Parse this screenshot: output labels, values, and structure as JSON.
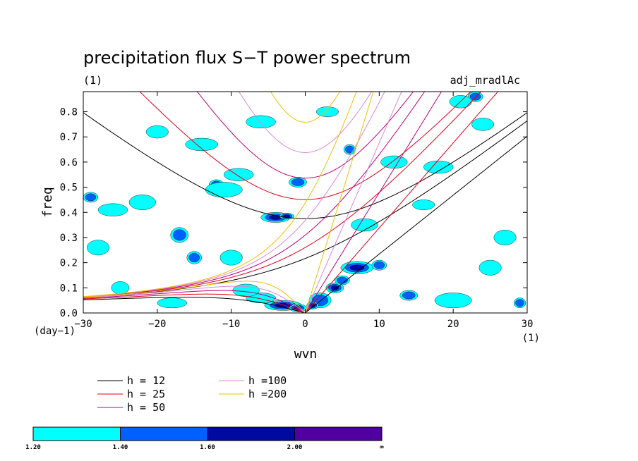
{
  "chart_data": {
    "type": "heatmap",
    "title": "precipitation flux S−T power spectrum",
    "subtitle_left": "(1)",
    "subtitle_right": "adj_mradlAc",
    "xlabel": "wvn",
    "ylabel": "freq",
    "x_unit": "(1)",
    "y_unit": "(day−1)",
    "xlim": [
      -30,
      30
    ],
    "ylim": [
      0,
      0.88
    ],
    "x_ticks": [
      {
        "value": -30,
        "label": "−30"
      },
      {
        "value": -20,
        "label": "−20"
      },
      {
        "value": -10,
        "label": "−10"
      },
      {
        "value": 0,
        "label": "0"
      },
      {
        "value": 10,
        "label": "10"
      },
      {
        "value": 20,
        "label": "20"
      },
      {
        "value": 30,
        "label": "30"
      }
    ],
    "y_ticks": [
      {
        "value": 0.0,
        "label": "0.0"
      },
      {
        "value": 0.1,
        "label": "0.1"
      },
      {
        "value": 0.2,
        "label": "0.2"
      },
      {
        "value": 0.3,
        "label": "0.3"
      },
      {
        "value": 0.4,
        "label": "0.4"
      },
      {
        "value": 0.5,
        "label": "0.5"
      },
      {
        "value": 0.6,
        "label": "0.6"
      },
      {
        "value": 0.7,
        "label": "0.7"
      },
      {
        "value": 0.8,
        "label": "0.8"
      }
    ],
    "grid": false,
    "legend_placement": "bottom-left",
    "dispersion_curves": [
      {
        "name": "h = 12",
        "h": 12,
        "color": "#000000"
      },
      {
        "name": "h = 25",
        "h": 25,
        "color": "#e0001a"
      },
      {
        "name": "h = 50",
        "h": 50,
        "color": "#c0007a"
      },
      {
        "name": "h =100",
        "h": 100,
        "color": "#d88ad8"
      },
      {
        "name": "h =200",
        "h": 200,
        "color": "#f0c000"
      }
    ],
    "colorbar": {
      "levels": [
        "1.20",
        "1.40",
        "1.60",
        "2.00",
        "∞"
      ],
      "colors": [
        "#00ffff",
        "#0060ff",
        "#000aa0",
        "#5000a0"
      ]
    },
    "power_blobs": [
      {
        "x": -4,
        "y": 0.38,
        "rx": 2.0,
        "ry": 0.02,
        "level": 3
      },
      {
        "x": -2.5,
        "y": 0.385,
        "rx": 1.0,
        "ry": 0.012,
        "level": 4
      },
      {
        "x": 7,
        "y": 0.18,
        "rx": 2.2,
        "ry": 0.025,
        "level": 3
      },
      {
        "x": 5,
        "y": 0.13,
        "rx": 1.0,
        "ry": 0.018,
        "level": 2
      },
      {
        "x": 4,
        "y": 0.1,
        "rx": 1.2,
        "ry": 0.02,
        "level": 3
      },
      {
        "x": 2,
        "y": 0.05,
        "rx": 1.5,
        "ry": 0.03,
        "level": 2
      },
      {
        "x": 1,
        "y": 0.03,
        "rx": 0.8,
        "ry": 0.015,
        "level": 3
      },
      {
        "x": -3,
        "y": 0.03,
        "rx": 2.5,
        "ry": 0.02,
        "level": 3
      },
      {
        "x": -1,
        "y": 0.02,
        "rx": 1.2,
        "ry": 0.015,
        "level": 4
      },
      {
        "x": -6,
        "y": 0.06,
        "rx": 2.0,
        "ry": 0.02,
        "level": 1
      },
      {
        "x": -8,
        "y": 0.09,
        "rx": 1.8,
        "ry": 0.025,
        "level": 1
      },
      {
        "x": -29,
        "y": 0.46,
        "rx": 1.0,
        "ry": 0.02,
        "level": 2
      },
      {
        "x": -17,
        "y": 0.31,
        "rx": 1.2,
        "ry": 0.03,
        "level": 2
      },
      {
        "x": -15,
        "y": 0.22,
        "rx": 1.0,
        "ry": 0.025,
        "level": 2
      },
      {
        "x": -10,
        "y": 0.22,
        "rx": 1.5,
        "ry": 0.03,
        "level": 1
      },
      {
        "x": -12,
        "y": 0.51,
        "rx": 1.0,
        "ry": 0.02,
        "level": 2
      },
      {
        "x": -11,
        "y": 0.49,
        "rx": 2.5,
        "ry": 0.03,
        "level": 1
      },
      {
        "x": -1,
        "y": 0.52,
        "rx": 1.2,
        "ry": 0.02,
        "level": 2
      },
      {
        "x": 6,
        "y": 0.65,
        "rx": 0.8,
        "ry": 0.02,
        "level": 2
      },
      {
        "x": 14,
        "y": 0.07,
        "rx": 1.2,
        "ry": 0.02,
        "level": 2
      },
      {
        "x": 10,
        "y": 0.19,
        "rx": 1.0,
        "ry": 0.02,
        "level": 2
      },
      {
        "x": 23,
        "y": 0.86,
        "rx": 1.0,
        "ry": 0.02,
        "level": 2
      },
      {
        "x": 21,
        "y": 0.84,
        "rx": 1.5,
        "ry": 0.025,
        "level": 1
      },
      {
        "x": 29,
        "y": 0.04,
        "rx": 0.8,
        "ry": 0.02,
        "level": 2
      },
      {
        "x": -25,
        "y": 0.1,
        "rx": 1.2,
        "ry": 0.025,
        "level": 1
      },
      {
        "x": -26,
        "y": 0.41,
        "rx": 2.0,
        "ry": 0.025,
        "level": 1
      },
      {
        "x": -22,
        "y": 0.44,
        "rx": 1.8,
        "ry": 0.03,
        "level": 1
      },
      {
        "x": -14,
        "y": 0.67,
        "rx": 2.2,
        "ry": 0.025,
        "level": 1
      },
      {
        "x": -9,
        "y": 0.55,
        "rx": 2.0,
        "ry": 0.025,
        "level": 1
      },
      {
        "x": 12,
        "y": 0.6,
        "rx": 1.8,
        "ry": 0.025,
        "level": 1
      },
      {
        "x": 18,
        "y": 0.58,
        "rx": 2.0,
        "ry": 0.025,
        "level": 1
      },
      {
        "x": 16,
        "y": 0.43,
        "rx": 1.5,
        "ry": 0.02,
        "level": 1
      },
      {
        "x": 20,
        "y": 0.05,
        "rx": 2.5,
        "ry": 0.03,
        "level": 1
      },
      {
        "x": 24,
        "y": 0.75,
        "rx": 1.5,
        "ry": 0.025,
        "level": 1
      },
      {
        "x": -20,
        "y": 0.72,
        "rx": 1.5,
        "ry": 0.025,
        "level": 1
      },
      {
        "x": -6,
        "y": 0.76,
        "rx": 2.0,
        "ry": 0.025,
        "level": 1
      },
      {
        "x": 3,
        "y": 0.8,
        "rx": 1.5,
        "ry": 0.02,
        "level": 1
      },
      {
        "x": -28,
        "y": 0.26,
        "rx": 1.5,
        "ry": 0.03,
        "level": 1
      },
      {
        "x": 27,
        "y": 0.3,
        "rx": 1.5,
        "ry": 0.03,
        "level": 1
      },
      {
        "x": 8,
        "y": 0.35,
        "rx": 1.8,
        "ry": 0.025,
        "level": 1
      },
      {
        "x": -18,
        "y": 0.04,
        "rx": 2.0,
        "ry": 0.02,
        "level": 1
      },
      {
        "x": 25,
        "y": 0.18,
        "rx": 1.5,
        "ry": 0.03,
        "level": 1
      }
    ]
  }
}
